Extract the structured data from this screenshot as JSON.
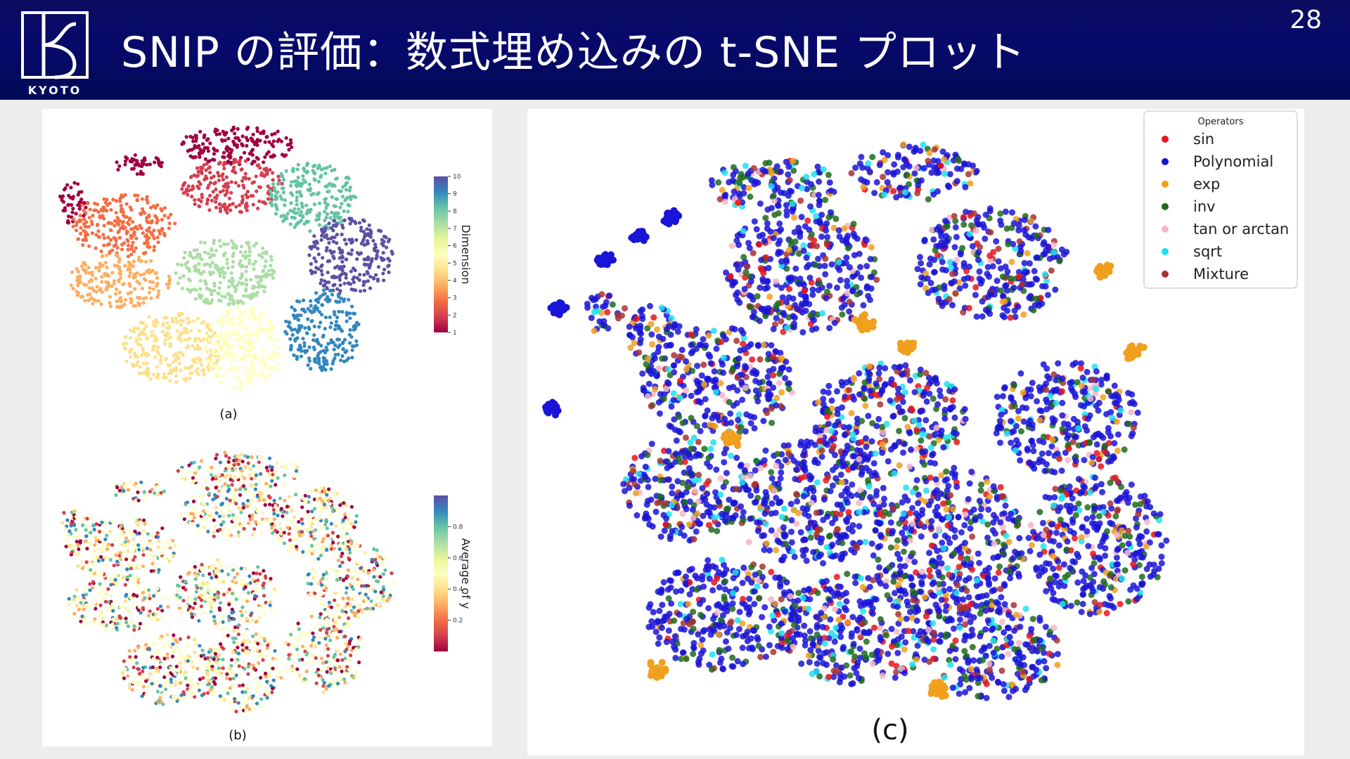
{
  "header": {
    "logo_text": "KYOTO",
    "title": "SNIP の評価：数式埋め込みの t-SNE プロット",
    "page_number": "28"
  },
  "colors": {
    "header_bg": "#0a0d60",
    "spectral": [
      "#9e0142",
      "#d53e4f",
      "#f46d43",
      "#fdae61",
      "#fee08b",
      "#ffffbf",
      "#e6f598",
      "#abdda4",
      "#66c2a5",
      "#3288bd",
      "#5e4fa2"
    ]
  },
  "chart_data": [
    {
      "id": "a",
      "type": "scatter",
      "caption": "(a)",
      "colorbar": {
        "label": "Dimension",
        "range": [
          1,
          10
        ],
        "ticks": [
          "1",
          "2",
          "3",
          "4",
          "5",
          "6",
          "7",
          "8",
          "9",
          "10"
        ]
      }
    },
    {
      "id": "b",
      "type": "scatter",
      "caption": "(b)",
      "colorbar": {
        "label": "Average of y",
        "range": [
          0,
          1
        ],
        "ticks": [
          "0.2",
          "0.4",
          "0.6",
          "0.8"
        ]
      }
    },
    {
      "id": "c",
      "type": "scatter",
      "caption": "(c)",
      "legend": {
        "title": "Operators",
        "position": "top-right",
        "entries": [
          {
            "label": "sin",
            "color": "#e8141a"
          },
          {
            "label": "Polynomial",
            "color": "#1a14d6"
          },
          {
            "label": "exp",
            "color": "#f0a01e"
          },
          {
            "label": "inv",
            "color": "#1f6b1f"
          },
          {
            "label": "tan or arctan",
            "color": "#f4b6c6"
          },
          {
            "label": "sqrt",
            "color": "#1ee0f0"
          },
          {
            "label": "Mixture",
            "color": "#a83232"
          }
        ]
      }
    }
  ]
}
